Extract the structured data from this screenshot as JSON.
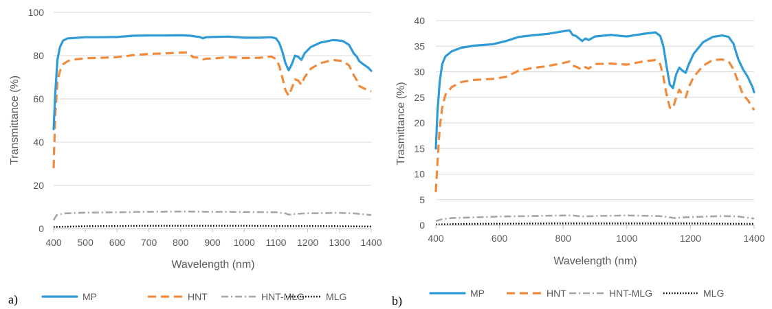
{
  "series_styles": [
    {
      "name": "MP",
      "color": "#2E9BD6",
      "dash": "",
      "width": 3.2,
      "cap": "round"
    },
    {
      "name": "HNT",
      "color": "#F08A3C",
      "dash": "12 7",
      "width": 3.2,
      "cap": "butt"
    },
    {
      "name": "HNT-MLG",
      "color": "#A6A6A6",
      "dash": "10 4 2 4",
      "width": 2.6,
      "cap": "butt"
    },
    {
      "name": "MLG",
      "color": "#000000",
      "dash": "1.6 2.4",
      "width": 2.6,
      "cap": "butt"
    }
  ],
  "chart_data": [
    {
      "panel_label": "a)",
      "type": "line",
      "xlabel": "Wavelength (nm)",
      "ylabel": "Transmittance (%)",
      "xlim": [
        400,
        1400
      ],
      "ylim": [
        0,
        100
      ],
      "x_ticks": [
        400,
        500,
        600,
        700,
        800,
        900,
        1000,
        1100,
        1200,
        1300,
        1400
      ],
      "y_ticks": [
        0,
        20,
        40,
        60,
        80,
        100
      ],
      "grid": "horizontal",
      "legend_position": "bottom",
      "series": [
        {
          "name": "MP",
          "points": [
            [
              400,
              46
            ],
            [
              405,
              62
            ],
            [
              412,
              78
            ],
            [
              420,
              84
            ],
            [
              430,
              87
            ],
            [
              445,
              88
            ],
            [
              470,
              88.2
            ],
            [
              500,
              88.5
            ],
            [
              550,
              88.5
            ],
            [
              600,
              88.6
            ],
            [
              650,
              89.2
            ],
            [
              700,
              89.3
            ],
            [
              750,
              89.3
            ],
            [
              800,
              89.4
            ],
            [
              830,
              89.2
            ],
            [
              860,
              88.6
            ],
            [
              870,
              88.0
            ],
            [
              880,
              88.5
            ],
            [
              900,
              88.6
            ],
            [
              950,
              88.8
            ],
            [
              1000,
              88.3
            ],
            [
              1050,
              88.3
            ],
            [
              1085,
              88.5
            ],
            [
              1100,
              88.0
            ],
            [
              1110,
              86.0
            ],
            [
              1120,
              82.0
            ],
            [
              1130,
              76.5
            ],
            [
              1140,
              73.2
            ],
            [
              1150,
              76.0
            ],
            [
              1160,
              80.0
            ],
            [
              1170,
              79.5
            ],
            [
              1180,
              78.0
            ],
            [
              1190,
              81.0
            ],
            [
              1210,
              84.0
            ],
            [
              1240,
              86.0
            ],
            [
              1280,
              87.2
            ],
            [
              1310,
              86.8
            ],
            [
              1330,
              85.0
            ],
            [
              1345,
              81.0
            ],
            [
              1355,
              79.5
            ],
            [
              1362,
              77.5
            ],
            [
              1375,
              76.0
            ],
            [
              1390,
              74.5
            ],
            [
              1400,
              73.0
            ]
          ]
        },
        {
          "name": "HNT",
          "points": [
            [
              400,
              28
            ],
            [
              405,
              52
            ],
            [
              412,
              68
            ],
            [
              420,
              73
            ],
            [
              430,
              76
            ],
            [
              445,
              77.5
            ],
            [
              470,
              78.3
            ],
            [
              500,
              78.8
            ],
            [
              550,
              79.0
            ],
            [
              600,
              79.3
            ],
            [
              650,
              80.2
            ],
            [
              700,
              80.8
            ],
            [
              750,
              81.0
            ],
            [
              800,
              81.4
            ],
            [
              820,
              81.5
            ],
            [
              830,
              80.5
            ],
            [
              840,
              79.2
            ],
            [
              860,
              79.0
            ],
            [
              870,
              78.3
            ],
            [
              880,
              78.6
            ],
            [
              900,
              78.6
            ],
            [
              950,
              79.3
            ],
            [
              1000,
              78.9
            ],
            [
              1050,
              79.0
            ],
            [
              1085,
              79.6
            ],
            [
              1100,
              78.5
            ],
            [
              1110,
              75.5
            ],
            [
              1120,
              70.0
            ],
            [
              1130,
              64.0
            ],
            [
              1140,
              61.5
            ],
            [
              1150,
              65.0
            ],
            [
              1160,
              69.0
            ],
            [
              1170,
              68.5
            ],
            [
              1180,
              66.5
            ],
            [
              1190,
              70.0
            ],
            [
              1210,
              74.0
            ],
            [
              1240,
              76.5
            ],
            [
              1280,
              78.0
            ],
            [
              1310,
              77.5
            ],
            [
              1330,
              75.5
            ],
            [
              1345,
              71.0
            ],
            [
              1355,
              68.5
            ],
            [
              1362,
              66.0
            ],
            [
              1375,
              65.0
            ],
            [
              1390,
              64.0
            ],
            [
              1400,
              63.5
            ]
          ]
        },
        {
          "name": "HNT-MLG",
          "points": [
            [
              400,
              4
            ],
            [
              410,
              6.3
            ],
            [
              430,
              7.0
            ],
            [
              500,
              7.4
            ],
            [
              600,
              7.6
            ],
            [
              700,
              7.8
            ],
            [
              800,
              7.9
            ],
            [
              900,
              7.8
            ],
            [
              1000,
              7.7
            ],
            [
              1100,
              7.6
            ],
            [
              1130,
              7.0
            ],
            [
              1140,
              6.5
            ],
            [
              1160,
              6.8
            ],
            [
              1200,
              7.1
            ],
            [
              1300,
              7.3
            ],
            [
              1350,
              7.0
            ],
            [
              1400,
              6.3
            ]
          ]
        },
        {
          "name": "MLG",
          "points": [
            [
              400,
              0.8
            ],
            [
              500,
              1.1
            ],
            [
              600,
              1.2
            ],
            [
              700,
              1.3
            ],
            [
              800,
              1.3
            ],
            [
              900,
              1.3
            ],
            [
              1000,
              1.3
            ],
            [
              1100,
              1.2
            ],
            [
              1200,
              1.2
            ],
            [
              1300,
              1.1
            ],
            [
              1400,
              1.0
            ]
          ]
        }
      ]
    },
    {
      "panel_label": "b)",
      "type": "line",
      "xlabel": "Wavelength (nm)",
      "ylabel": "Trasmittance (%)",
      "xlim": [
        400,
        1400
      ],
      "ylim": [
        0,
        40
      ],
      "x_ticks": [
        400,
        600,
        800,
        1000,
        1200,
        1400
      ],
      "y_ticks": [
        0,
        5,
        10,
        15,
        20,
        25,
        30,
        35,
        40
      ],
      "grid": "horizontal",
      "legend_position": "bottom",
      "series": [
        {
          "name": "MP",
          "points": [
            [
              400,
              15
            ],
            [
              405,
              22
            ],
            [
              412,
              28
            ],
            [
              420,
              31.5
            ],
            [
              430,
              33
            ],
            [
              450,
              34
            ],
            [
              480,
              34.7
            ],
            [
              520,
              35.1
            ],
            [
              580,
              35.4
            ],
            [
              620,
              36.0
            ],
            [
              660,
              36.8
            ],
            [
              700,
              37.1
            ],
            [
              750,
              37.4
            ],
            [
              800,
              37.9
            ],
            [
              820,
              38.1
            ],
            [
              830,
              37.2
            ],
            [
              840,
              37.0
            ],
            [
              850,
              36.5
            ],
            [
              860,
              36.0
            ],
            [
              870,
              36.5
            ],
            [
              880,
              36.2
            ],
            [
              900,
              36.9
            ],
            [
              950,
              37.2
            ],
            [
              1000,
              36.9
            ],
            [
              1050,
              37.4
            ],
            [
              1090,
              37.7
            ],
            [
              1105,
              37.0
            ],
            [
              1115,
              35.0
            ],
            [
              1125,
              31.0
            ],
            [
              1135,
              27.5
            ],
            [
              1145,
              26.8
            ],
            [
              1155,
              29.5
            ],
            [
              1165,
              30.8
            ],
            [
              1175,
              30.2
            ],
            [
              1185,
              29.8
            ],
            [
              1195,
              31.5
            ],
            [
              1210,
              33.5
            ],
            [
              1240,
              35.8
            ],
            [
              1270,
              36.8
            ],
            [
              1300,
              37.1
            ],
            [
              1320,
              36.8
            ],
            [
              1335,
              35.5
            ],
            [
              1350,
              32.5
            ],
            [
              1365,
              30.5
            ],
            [
              1380,
              29.0
            ],
            [
              1395,
              27.0
            ],
            [
              1400,
              26.0
            ]
          ]
        },
        {
          "name": "HNT",
          "points": [
            [
              400,
              6.5
            ],
            [
              405,
              12
            ],
            [
              412,
              19
            ],
            [
              420,
              23
            ],
            [
              430,
              25.5
            ],
            [
              450,
              27
            ],
            [
              480,
              28
            ],
            [
              520,
              28.4
            ],
            [
              580,
              28.6
            ],
            [
              620,
              29.0
            ],
            [
              660,
              30.2
            ],
            [
              700,
              30.7
            ],
            [
              750,
              31.1
            ],
            [
              800,
              31.7
            ],
            [
              820,
              32.0
            ],
            [
              830,
              31.2
            ],
            [
              840,
              31.0
            ],
            [
              860,
              30.4
            ],
            [
              870,
              30.9
            ],
            [
              880,
              30.6
            ],
            [
              900,
              31.5
            ],
            [
              950,
              31.6
            ],
            [
              1000,
              31.4
            ],
            [
              1050,
              32.0
            ],
            [
              1090,
              32.3
            ],
            [
              1105,
              31.5
            ],
            [
              1115,
              29.0
            ],
            [
              1125,
              25.5
            ],
            [
              1135,
              23.0
            ],
            [
              1145,
              22.8
            ],
            [
              1155,
              25.0
            ],
            [
              1165,
              26.5
            ],
            [
              1175,
              25.5
            ],
            [
              1185,
              25.0
            ],
            [
              1195,
              27.0
            ],
            [
              1210,
              29.0
            ],
            [
              1240,
              31.2
            ],
            [
              1270,
              32.3
            ],
            [
              1300,
              32.4
            ],
            [
              1320,
              32.0
            ],
            [
              1335,
              30.5
            ],
            [
              1350,
              28.0
            ],
            [
              1365,
              25.5
            ],
            [
              1380,
              24.5
            ],
            [
              1395,
              23.0
            ],
            [
              1400,
              22.5
            ]
          ]
        },
        {
          "name": "HNT-MLG",
          "points": [
            [
              400,
              0.8
            ],
            [
              420,
              1.2
            ],
            [
              450,
              1.4
            ],
            [
              500,
              1.5
            ],
            [
              600,
              1.7
            ],
            [
              700,
              1.8
            ],
            [
              800,
              1.9
            ],
            [
              830,
              1.9
            ],
            [
              860,
              1.7
            ],
            [
              900,
              1.8
            ],
            [
              1000,
              1.9
            ],
            [
              1100,
              1.8
            ],
            [
              1130,
              1.6
            ],
            [
              1150,
              1.4
            ],
            [
              1200,
              1.6
            ],
            [
              1300,
              1.8
            ],
            [
              1350,
              1.7
            ],
            [
              1400,
              1.3
            ]
          ]
        },
        {
          "name": "MLG",
          "points": [
            [
              400,
              0.15
            ],
            [
              500,
              0.25
            ],
            [
              600,
              0.3
            ],
            [
              700,
              0.32
            ],
            [
              800,
              0.35
            ],
            [
              900,
              0.35
            ],
            [
              1000,
              0.35
            ],
            [
              1100,
              0.35
            ],
            [
              1200,
              0.35
            ],
            [
              1300,
              0.3
            ],
            [
              1400,
              0.25
            ]
          ]
        }
      ]
    }
  ]
}
